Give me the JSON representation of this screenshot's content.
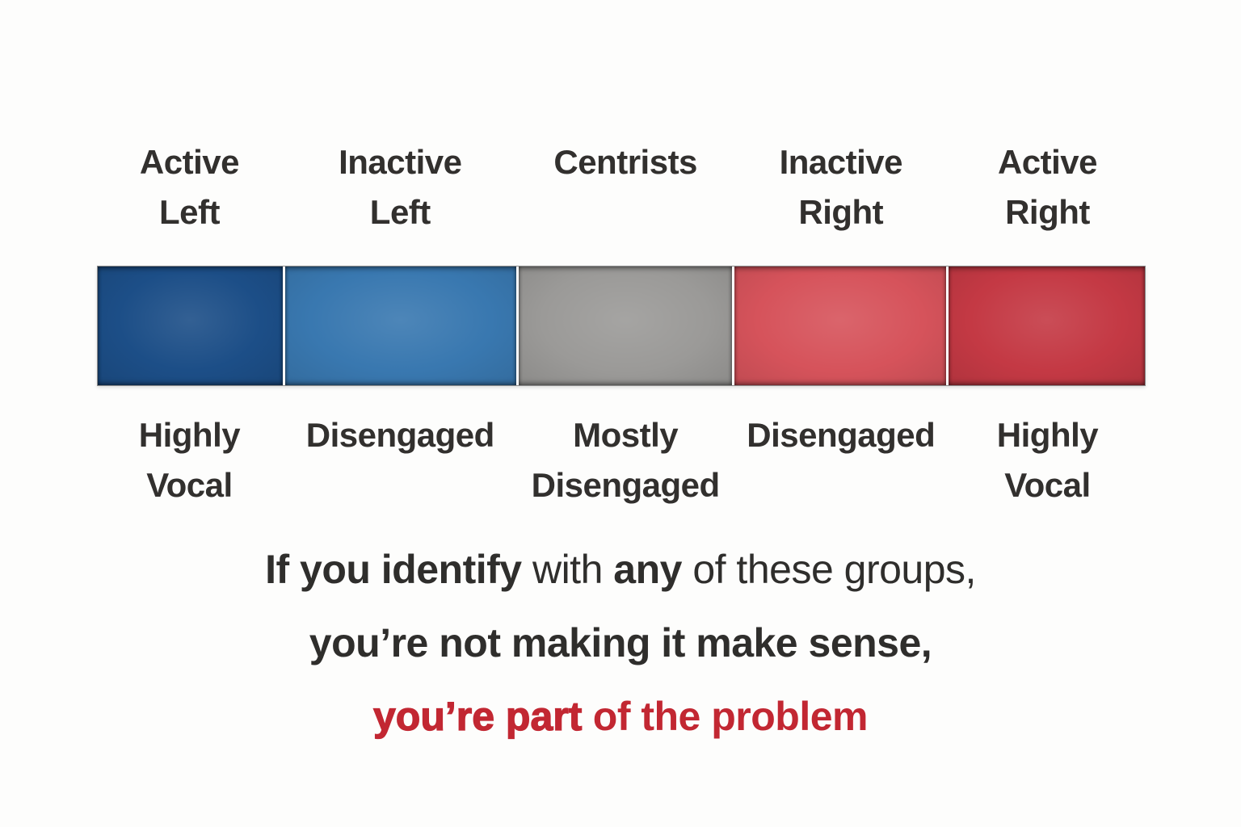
{
  "colors": {
    "background": "#fdfdfc",
    "text_dark": "#2f2e2c",
    "accent_red_text": "#c22732"
  },
  "spectrum": {
    "segments": [
      {
        "name": "Active Left",
        "top_line1": "Active",
        "top_line2": "Left",
        "bottom_line1": "Highly",
        "bottom_line2": "Vocal",
        "color": "#1c4e87"
      },
      {
        "name": "Inactive Left",
        "top_line1": "Inactive",
        "top_line2": "Left",
        "bottom_line1": "Disengaged",
        "bottom_line2": "",
        "color": "#3978b0"
      },
      {
        "name": "Centrists",
        "top_line1": "Centrists",
        "top_line2": "",
        "bottom_line1": "Mostly",
        "bottom_line2": "Disengaged",
        "color": "#9b9a98"
      },
      {
        "name": "Inactive Right",
        "top_line1": "Inactive",
        "top_line2": "Right",
        "bottom_line1": "Disengaged",
        "bottom_line2": "",
        "color": "#d6535b"
      },
      {
        "name": "Active Right",
        "top_line1": "Active",
        "top_line2": "Right",
        "bottom_line1": "Highly",
        "bottom_line2": "Vocal",
        "color": "#c43944"
      }
    ]
  },
  "statement": {
    "line1_bold1": "If you identify",
    "line1_regular1": " with ",
    "line1_bold2": "any",
    "line1_regular2": " of these groups,",
    "line2": "you’re not making it make sense,",
    "line3_emphasis": "you’re part",
    "line3_rest": " of the problem"
  }
}
